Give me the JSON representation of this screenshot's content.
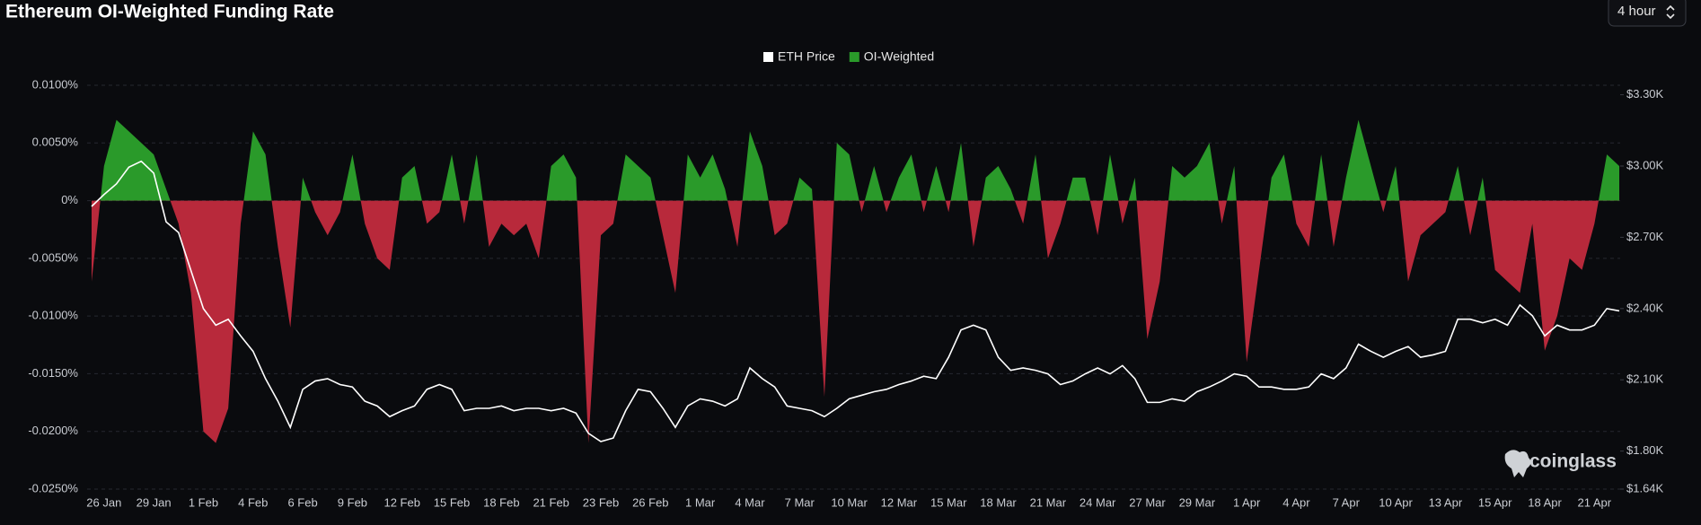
{
  "chart_data": {
    "type": "area",
    "title": "Ethereum OI-Weighted Funding Rate",
    "categories": [
      null,
      "26 Jan",
      null,
      null,
      null,
      "29 Jan",
      null,
      null,
      null,
      "1 Feb",
      null,
      null,
      null,
      "4 Feb",
      null,
      null,
      null,
      "6 Feb",
      null,
      null,
      null,
      "9 Feb",
      null,
      null,
      null,
      "12 Feb",
      null,
      null,
      null,
      "15 Feb",
      null,
      null,
      null,
      "18 Feb",
      null,
      null,
      null,
      "21 Feb",
      null,
      null,
      null,
      "23 Feb",
      null,
      null,
      null,
      "26 Feb",
      null,
      null,
      null,
      "1 Mar",
      null,
      null,
      null,
      "4 Mar",
      null,
      null,
      null,
      "7 Mar",
      null,
      null,
      null,
      "10 Mar",
      null,
      null,
      null,
      "12 Mar",
      null,
      null,
      null,
      "15 Mar",
      null,
      null,
      null,
      "18 Mar",
      null,
      null,
      null,
      "21 Mar",
      null,
      null,
      null,
      "24 Mar",
      null,
      null,
      null,
      "27 Mar",
      null,
      null,
      null,
      "29 Mar",
      null,
      null,
      null,
      "1 Apr",
      null,
      null,
      null,
      "4 Apr",
      null,
      null,
      null,
      "7 Apr",
      null,
      null,
      null,
      "10 Apr",
      null,
      null,
      null,
      "13 Apr",
      null,
      null,
      null,
      "15 Apr",
      null,
      null,
      null,
      "18 Apr",
      null,
      null,
      null,
      "21 Apr",
      null,
      null
    ],
    "series": [
      {
        "name": "ETH Price",
        "type": "line",
        "axis": "y2",
        "color": "#ffffff",
        "values": [
          2830,
          2880,
          2925,
          2995,
          3020,
          2970,
          2765,
          2720,
          2560,
          2400,
          2330,
          2355,
          2285,
          2220,
          2105,
          2010,
          1900,
          2060,
          2095,
          2105,
          2080,
          2070,
          2010,
          1990,
          1945,
          1970,
          1990,
          2060,
          2080,
          2060,
          1970,
          1980,
          1980,
          1990,
          1970,
          1980,
          1980,
          1970,
          1980,
          1960,
          1875,
          1840,
          1855,
          1970,
          2060,
          2050,
          1980,
          1900,
          1990,
          2020,
          2010,
          1990,
          2020,
          2150,
          2105,
          2070,
          1990,
          1980,
          1970,
          1945,
          1980,
          2020,
          2035,
          2050,
          2060,
          2080,
          2095,
          2115,
          2105,
          2195,
          2310,
          2330,
          2310,
          2195,
          2140,
          2150,
          2140,
          2125,
          2080,
          2095,
          2125,
          2150,
          2125,
          2160,
          2105,
          2005,
          2005,
          2020,
          2010,
          2050,
          2070,
          2095,
          2125,
          2115,
          2070,
          2070,
          2060,
          2060,
          2070,
          2125,
          2105,
          2150,
          2250,
          2220,
          2195,
          2220,
          2240,
          2195,
          2205,
          2220,
          2355,
          2355,
          2340,
          2355,
          2330,
          2415,
          2370,
          2285,
          2330,
          2310,
          2310,
          2330,
          2400,
          2390
        ]
      },
      {
        "name": "OI-Weighted",
        "type": "area",
        "axis": "y",
        "color": "#2a9a2a",
        "negative_color": "#b8293b",
        "values": [
          -0.007,
          0.003,
          0.007,
          0.006,
          0.005,
          0.004,
          0.001,
          -0.002,
          -0.008,
          -0.02,
          -0.021,
          -0.018,
          -0.002,
          0.006,
          0.004,
          -0.004,
          -0.011,
          0.002,
          -0.001,
          -0.003,
          -0.001,
          0.004,
          -0.002,
          -0.005,
          -0.006,
          0.002,
          0.003,
          -0.002,
          -0.001,
          0.004,
          -0.002,
          0.004,
          -0.004,
          -0.002,
          -0.003,
          -0.002,
          -0.005,
          0.003,
          0.004,
          0.002,
          -0.021,
          -0.003,
          -0.002,
          0.004,
          0.003,
          0.002,
          -0.003,
          -0.008,
          0.004,
          0.002,
          0.004,
          0.001,
          -0.004,
          0.006,
          0.003,
          -0.003,
          -0.002,
          0.002,
          0.001,
          -0.017,
          0.005,
          0.004,
          -0.001,
          0.003,
          -0.001,
          0.002,
          0.004,
          -0.001,
          0.003,
          -0.001,
          0.005,
          -0.004,
          0.002,
          0.003,
          0.001,
          -0.002,
          0.004,
          -0.005,
          -0.002,
          0.002,
          0.002,
          -0.003,
          0.004,
          -0.002,
          0.002,
          -0.012,
          -0.007,
          0.003,
          0.002,
          0.003,
          0.005,
          -0.002,
          0.003,
          -0.014,
          -0.006,
          0.002,
          0.004,
          -0.002,
          -0.004,
          0.004,
          -0.004,
          0.002,
          0.007,
          0.003,
          -0.001,
          0.003,
          -0.007,
          -0.003,
          -0.002,
          -0.001,
          0.003,
          -0.003,
          0.002,
          -0.006,
          -0.007,
          -0.008,
          -0.002,
          -0.013,
          -0.01,
          -0.005,
          -0.006,
          -0.002,
          0.004,
          0.003
        ]
      }
    ],
    "ylim": [
      -0.025,
      0.01
    ],
    "yticks": [
      {
        "value": 0.01,
        "label": "0.0100%"
      },
      {
        "value": 0.005,
        "label": "0.0050%"
      },
      {
        "value": 0,
        "label": "0%"
      },
      {
        "value": -0.005,
        "label": "-0.0050%"
      },
      {
        "value": -0.01,
        "label": "-0.0100%"
      },
      {
        "value": -0.015,
        "label": "-0.0150%"
      },
      {
        "value": -0.02,
        "label": "-0.0200%"
      },
      {
        "value": -0.025,
        "label": "-0.0250%"
      }
    ],
    "y2lim": [
      1640,
      3340
    ],
    "y2ticks": [
      {
        "value": 3300,
        "label": "$3.30K"
      },
      {
        "value": 3000,
        "label": "$3.00K"
      },
      {
        "value": 2700,
        "label": "$2.70K"
      },
      {
        "value": 2400,
        "label": "$2.40K"
      },
      {
        "value": 2100,
        "label": "$2.10K"
      },
      {
        "value": 1800,
        "label": "$1.80K"
      },
      {
        "value": 1640,
        "label": "$1.64K"
      }
    ],
    "grid": true,
    "legend": "top"
  },
  "ui": {
    "interval": "4 hour",
    "watermark": "coinglass"
  }
}
